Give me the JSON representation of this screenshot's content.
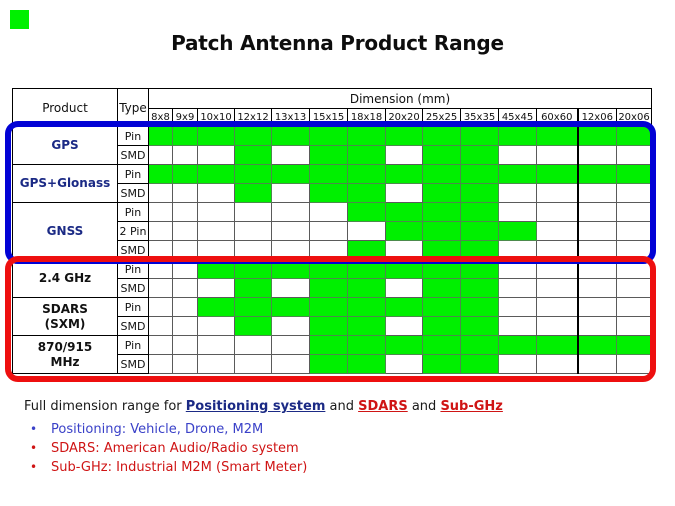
{
  "title": "Patch Antenna Product Range",
  "colors": {
    "cell_green": "#00f000",
    "positioning_outline_blue": "#0202d5",
    "sdars_outline_red": "#ee0f0f",
    "navy_product_text": "#1b2a85",
    "footer_blue_text": "#3a41c8",
    "footer_red_text": "#cf1414"
  },
  "table": {
    "headers": {
      "product": "Product",
      "type": "Type",
      "dimension": "Dimension  (mm)"
    },
    "columns": [
      "8x8",
      "9x9",
      "10x10",
      "12x12",
      "13x13",
      "15x15",
      "18x18",
      "20x20",
      "25x25",
      "35x35",
      "45x45",
      "60x60",
      "12x06",
      "20x06"
    ],
    "groups": [
      {
        "product": "GPS",
        "section": "positioning",
        "rows": [
          {
            "type": "Pin",
            "cells": [
              1,
              1,
              1,
              1,
              1,
              1,
              1,
              1,
              1,
              1,
              1,
              1,
              1,
              1
            ]
          },
          {
            "type": "SMD",
            "cells": [
              0,
              0,
              0,
              1,
              0,
              1,
              1,
              0,
              1,
              1,
              0,
              0,
              0,
              0
            ]
          }
        ]
      },
      {
        "product": "GPS+Glonass",
        "section": "positioning",
        "rows": [
          {
            "type": "Pin",
            "cells": [
              1,
              1,
              1,
              1,
              1,
              1,
              1,
              1,
              1,
              1,
              1,
              1,
              1,
              1
            ]
          },
          {
            "type": "SMD",
            "cells": [
              0,
              0,
              0,
              1,
              0,
              1,
              1,
              0,
              1,
              1,
              0,
              0,
              0,
              0
            ]
          }
        ]
      },
      {
        "product": "GNSS",
        "section": "positioning",
        "rows": [
          {
            "type": "Pin",
            "cells": [
              0,
              0,
              0,
              0,
              0,
              0,
              1,
              1,
              1,
              1,
              0,
              0,
              0,
              0
            ]
          },
          {
            "type": "2 Pin",
            "cells": [
              0,
              0,
              0,
              0,
              0,
              0,
              0,
              1,
              1,
              1,
              1,
              0,
              0,
              0
            ]
          },
          {
            "type": "SMD",
            "cells": [
              0,
              0,
              0,
              0,
              0,
              0,
              1,
              0,
              1,
              1,
              0,
              0,
              0,
              0
            ]
          }
        ]
      },
      {
        "product": "2.4 GHz",
        "section": "sdars-subghz",
        "rows": [
          {
            "type": "Pin",
            "cells": [
              0,
              0,
              1,
              1,
              1,
              1,
              1,
              1,
              1,
              1,
              0,
              0,
              0,
              0
            ]
          },
          {
            "type": "SMD",
            "cells": [
              0,
              0,
              0,
              1,
              0,
              1,
              1,
              0,
              1,
              1,
              0,
              0,
              0,
              0
            ]
          }
        ]
      },
      {
        "product": "SDARS\n(SXM)",
        "section": "sdars-subghz",
        "rows": [
          {
            "type": "Pin",
            "cells": [
              0,
              0,
              1,
              1,
              1,
              1,
              1,
              1,
              1,
              1,
              0,
              0,
              0,
              0
            ]
          },
          {
            "type": "SMD",
            "cells": [
              0,
              0,
              0,
              1,
              0,
              1,
              1,
              0,
              1,
              1,
              0,
              0,
              0,
              0
            ]
          }
        ]
      },
      {
        "product": "870/915\nMHz",
        "section": "sdars-subghz",
        "rows": [
          {
            "type": "Pin",
            "cells": [
              0,
              0,
              0,
              0,
              0,
              1,
              1,
              1,
              1,
              1,
              1,
              1,
              1,
              1
            ]
          },
          {
            "type": "SMD",
            "cells": [
              0,
              0,
              0,
              0,
              0,
              1,
              1,
              0,
              1,
              1,
              0,
              0,
              0,
              0
            ]
          }
        ]
      }
    ]
  },
  "footer": {
    "heading": {
      "prefix": "Full dimension range for ",
      "positioning": "Positioning system",
      "and1": " and ",
      "sdars": "SDARS",
      "and2": " and ",
      "subghz": "Sub-GHz"
    },
    "bullets": [
      {
        "text": "Positioning: Vehicle, Drone, M2M",
        "color": "blue"
      },
      {
        "text": "SDARS: American Audio/Radio system",
        "color": "red"
      },
      {
        "text": "Sub-GHz: Industrial M2M (Smart Meter)",
        "color": "red"
      }
    ]
  }
}
